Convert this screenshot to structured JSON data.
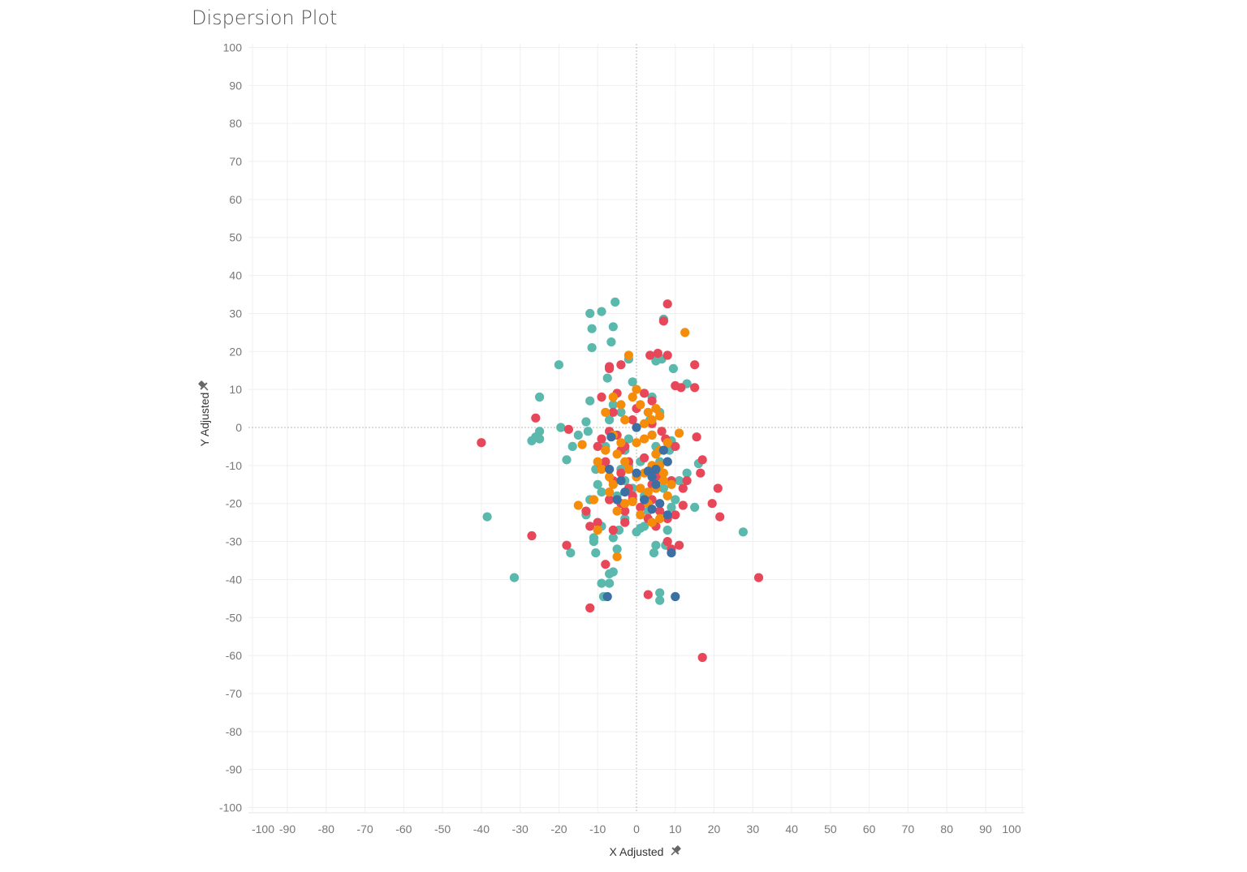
{
  "page": {
    "title": "Dispersion Plot"
  },
  "chart_data": {
    "type": "scatter",
    "title": "Dispersion Plot",
    "xlabel": "X Adjusted",
    "ylabel": "Y Adjusted",
    "xlim": [
      -100,
      100
    ],
    "ylim": [
      -100,
      100
    ],
    "x_ticks": [
      -100,
      -90,
      -80,
      -70,
      -60,
      -50,
      -40,
      -30,
      -20,
      -10,
      0,
      10,
      20,
      30,
      40,
      50,
      60,
      70,
      80,
      90,
      100
    ],
    "y_ticks": [
      100,
      90,
      80,
      70,
      60,
      50,
      40,
      30,
      20,
      10,
      0,
      -10,
      -20,
      -30,
      -40,
      -50,
      -60,
      -70,
      -80,
      -90,
      -100
    ],
    "grid": true,
    "zero_lines": true,
    "legend": "none",
    "axis_pin_icon": "pin-icon",
    "series": [
      {
        "color": "#5ab8ad",
        "points": [
          [
            -5.5,
            33
          ],
          [
            -12,
            30
          ],
          [
            -9,
            30.5
          ],
          [
            -11.5,
            26
          ],
          [
            -6,
            26.5
          ],
          [
            -6.5,
            22.5
          ],
          [
            -11.5,
            21
          ],
          [
            -20,
            16.5
          ],
          [
            -25,
            8
          ],
          [
            -12,
            7
          ],
          [
            -7.5,
            13
          ],
          [
            -2,
            18
          ],
          [
            -1,
            12
          ],
          [
            -27,
            -3.5
          ],
          [
            -26,
            -2.5
          ],
          [
            -25,
            -3
          ],
          [
            -25,
            -1
          ],
          [
            -19.5,
            0
          ],
          [
            -18,
            -8.5
          ],
          [
            -16.5,
            -5
          ],
          [
            -15,
            -2
          ],
          [
            -13,
            1.5
          ],
          [
            -12.5,
            -1
          ],
          [
            -10.5,
            -11
          ],
          [
            -10,
            -15
          ],
          [
            -9,
            -17
          ],
          [
            -12,
            -19
          ],
          [
            -13,
            -23
          ],
          [
            -11,
            -29
          ],
          [
            -10.5,
            -33
          ],
          [
            -17,
            -33
          ],
          [
            -31.5,
            -39.5
          ],
          [
            -38.5,
            -23.5
          ],
          [
            -9,
            -41
          ],
          [
            -7,
            -41
          ],
          [
            -6,
            -38
          ],
          [
            -7,
            -38.5
          ],
          [
            -8.5,
            -44.5
          ],
          [
            -6,
            -29
          ],
          [
            -4.5,
            -27
          ],
          [
            -3,
            -24
          ],
          [
            -5,
            -18
          ],
          [
            -4,
            -11
          ],
          [
            -3,
            -6
          ],
          [
            -2,
            -3
          ],
          [
            0,
            -27.5
          ],
          [
            1,
            -26.5
          ],
          [
            2,
            -26
          ],
          [
            5,
            -31
          ],
          [
            4.5,
            -33
          ],
          [
            6,
            -43.5
          ],
          [
            6,
            -45.5
          ],
          [
            7.5,
            -31
          ],
          [
            8,
            -27
          ],
          [
            9,
            -21
          ],
          [
            10,
            -19
          ],
          [
            11,
            -14
          ],
          [
            13,
            -12
          ],
          [
            15,
            -21
          ],
          [
            16,
            -9.5
          ],
          [
            6,
            -9
          ],
          [
            8.5,
            -6
          ],
          [
            9,
            -3.5
          ],
          [
            5,
            -5
          ],
          [
            4,
            -2
          ],
          [
            3.5,
            2
          ],
          [
            4,
            8
          ],
          [
            5,
            17.5
          ],
          [
            6.5,
            18
          ],
          [
            7,
            28.5
          ],
          [
            9.5,
            15.5
          ],
          [
            13,
            11.5
          ],
          [
            27.5,
            -27.5
          ],
          [
            -4,
            4
          ],
          [
            -6,
            6
          ],
          [
            -7,
            2
          ],
          [
            -8,
            -5
          ],
          [
            -3,
            -14
          ],
          [
            -1,
            -16
          ],
          [
            2,
            -18
          ],
          [
            3,
            -22
          ],
          [
            -2,
            -10
          ],
          [
            1,
            -9
          ],
          [
            4,
            -12
          ],
          [
            7,
            -16
          ],
          [
            -9,
            -26
          ],
          [
            -11,
            -30
          ],
          [
            -5,
            -32
          ],
          [
            6,
            4
          ]
        ]
      },
      {
        "color": "#e8475a",
        "points": [
          [
            -40,
            -4
          ],
          [
            -26,
            2.5
          ],
          [
            -27,
            -28.5
          ],
          [
            -18,
            -31
          ],
          [
            -17.5,
            -0.5
          ],
          [
            -12,
            -47.5
          ],
          [
            -8,
            -36
          ],
          [
            -12,
            -26
          ],
          [
            -13,
            -22
          ],
          [
            -10,
            -25
          ],
          [
            -9,
            8
          ],
          [
            -7,
            15.5
          ],
          [
            -7,
            16
          ],
          [
            -4,
            16.5
          ],
          [
            -10,
            -5
          ],
          [
            -9,
            -3
          ],
          [
            -7,
            -1
          ],
          [
            -5,
            -2
          ],
          [
            -4,
            -6
          ],
          [
            -3,
            -5
          ],
          [
            -2,
            -9
          ],
          [
            -1,
            -18
          ],
          [
            -3,
            -22
          ],
          [
            -3,
            -25
          ],
          [
            -6,
            -27
          ],
          [
            3,
            -24
          ],
          [
            4,
            -19
          ],
          [
            5,
            -26
          ],
          [
            3,
            -44
          ],
          [
            8,
            -30
          ],
          [
            9,
            -32
          ],
          [
            11,
            -31
          ],
          [
            12,
            -20.5
          ],
          [
            13,
            -14
          ],
          [
            16.5,
            -12
          ],
          [
            17,
            -8.5
          ],
          [
            19.5,
            -20
          ],
          [
            21,
            -16
          ],
          [
            21.5,
            -23.5
          ],
          [
            31.5,
            -39.5
          ],
          [
            17,
            -60.5
          ],
          [
            15,
            10.5
          ],
          [
            15,
            16.5
          ],
          [
            15.5,
            -2.5
          ],
          [
            10,
            11
          ],
          [
            11.5,
            10.5
          ],
          [
            8,
            19
          ],
          [
            5.5,
            19.5
          ],
          [
            3.5,
            19
          ],
          [
            7,
            28
          ],
          [
            8,
            32.5
          ],
          [
            4,
            7
          ],
          [
            4,
            1
          ],
          [
            6.5,
            -1
          ],
          [
            7.5,
            -3
          ],
          [
            10,
            -5
          ],
          [
            8,
            -9
          ],
          [
            6,
            -12
          ],
          [
            4,
            -15
          ],
          [
            2,
            -8
          ],
          [
            -1,
            2
          ],
          [
            0,
            5
          ],
          [
            2,
            9
          ],
          [
            -5,
            9
          ],
          [
            -6,
            4
          ],
          [
            -8,
            -9
          ],
          [
            -9,
            -10
          ],
          [
            -6,
            -14
          ],
          [
            -4,
            -12
          ],
          [
            -1,
            -19
          ],
          [
            1,
            -21
          ],
          [
            6,
            -22
          ],
          [
            8,
            -24
          ],
          [
            10,
            -23
          ],
          [
            12,
            -16
          ],
          [
            9,
            -14
          ],
          [
            5,
            -13
          ],
          [
            -2,
            -16
          ],
          [
            -4,
            -20
          ],
          [
            -7,
            -19
          ]
        ]
      },
      {
        "color": "#f58c0a",
        "points": [
          [
            -8,
            4
          ],
          [
            -6,
            8
          ],
          [
            -4,
            6
          ],
          [
            -3,
            2
          ],
          [
            -1,
            8
          ],
          [
            -2,
            19
          ],
          [
            0,
            10
          ],
          [
            1,
            6
          ],
          [
            3,
            4
          ],
          [
            4,
            2
          ],
          [
            5,
            5
          ],
          [
            6,
            3
          ],
          [
            2,
            -3
          ],
          [
            4,
            -2
          ],
          [
            5,
            -7
          ],
          [
            6,
            -10
          ],
          [
            7,
            -12
          ],
          [
            9,
            -15
          ],
          [
            11,
            -1.5
          ],
          [
            12.5,
            25
          ],
          [
            -14,
            -4.5
          ],
          [
            -15,
            -20.5
          ],
          [
            -11,
            -19
          ],
          [
            -10,
            -27
          ],
          [
            -5,
            -34
          ],
          [
            -3,
            -20
          ],
          [
            -1,
            -19.5
          ],
          [
            1,
            -16
          ],
          [
            3,
            -17
          ],
          [
            4,
            -25
          ],
          [
            6,
            -24
          ],
          [
            8,
            -18
          ],
          [
            -6,
            -15
          ],
          [
            -7,
            -13
          ],
          [
            -9,
            -11
          ],
          [
            -10,
            -9
          ],
          [
            -5,
            -7
          ],
          [
            -4,
            -4
          ],
          [
            -6,
            -2
          ],
          [
            -8,
            -6
          ],
          [
            -2,
            -11
          ],
          [
            0,
            -13
          ],
          [
            2,
            -12
          ],
          [
            4,
            -10
          ],
          [
            6,
            -6
          ],
          [
            8,
            -4
          ],
          [
            3,
            -20
          ],
          [
            1,
            -23
          ],
          [
            -5,
            -22
          ],
          [
            -7,
            -17
          ],
          [
            5,
            -16
          ],
          [
            7,
            -14
          ],
          [
            2,
            1
          ],
          [
            -3,
            -9
          ],
          [
            0,
            -4
          ]
        ]
      },
      {
        "color": "#3c6fa3",
        "points": [
          [
            0,
            0
          ],
          [
            7,
            -6
          ],
          [
            8,
            -9
          ],
          [
            5,
            -11
          ],
          [
            3,
            -11.5
          ],
          [
            -6.5,
            -2.5
          ],
          [
            -7,
            -11
          ],
          [
            -4,
            -14
          ],
          [
            0,
            -12
          ],
          [
            4,
            -13
          ],
          [
            5,
            -15
          ],
          [
            6,
            -20
          ],
          [
            4,
            -21.5
          ],
          [
            8,
            -23
          ],
          [
            9,
            -33
          ],
          [
            10,
            -44.5
          ],
          [
            -7.5,
            -44.5
          ],
          [
            -5,
            -19
          ],
          [
            -3,
            -17
          ],
          [
            2,
            -19
          ]
        ]
      }
    ]
  }
}
